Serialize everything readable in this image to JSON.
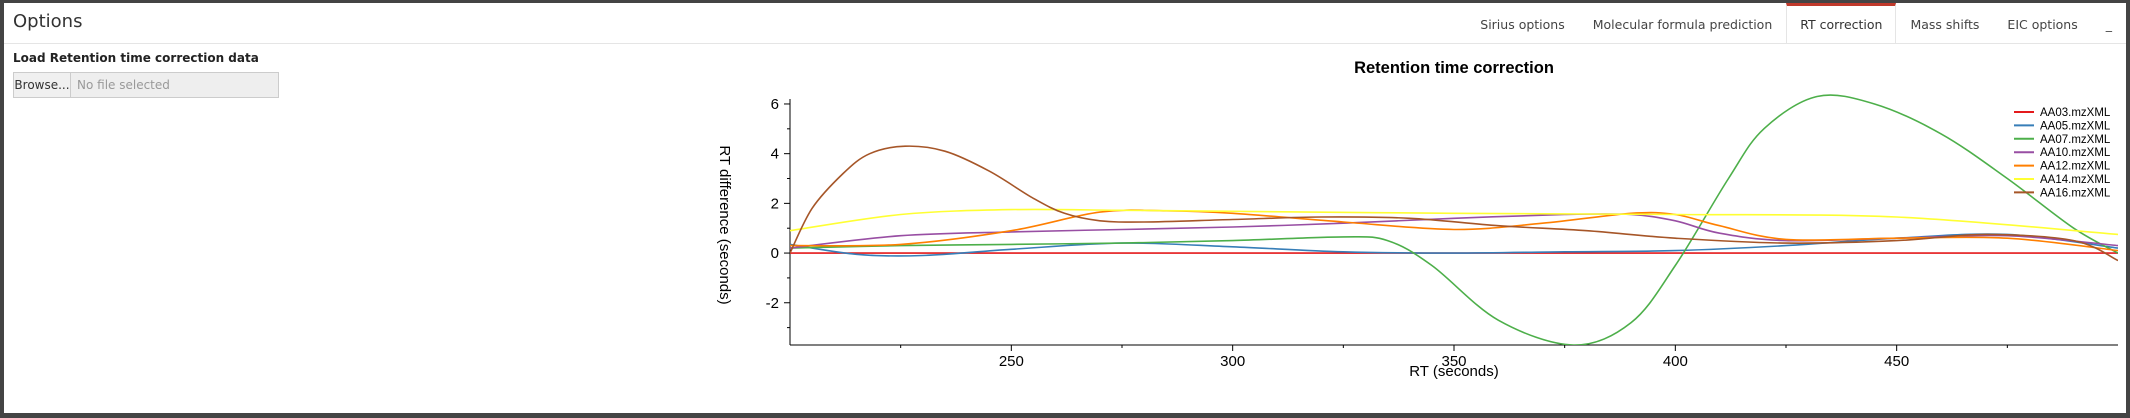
{
  "header": {
    "title": "Options",
    "tabs": [
      {
        "label": "Sirius options",
        "active": false
      },
      {
        "label": "Molecular formula prediction",
        "active": false
      },
      {
        "label": "RT correction",
        "active": true
      },
      {
        "label": "Mass shifts",
        "active": false
      },
      {
        "label": "EIC options",
        "active": false
      },
      {
        "label": "_",
        "active": false
      }
    ]
  },
  "side": {
    "heading": "Load Retention time correction data",
    "browse_label": "Browse...",
    "file_placeholder": "No file selected"
  },
  "chart_data": {
    "type": "line",
    "title": "Retention time correction",
    "xlabel": "RT (seconds)",
    "ylabel": "RT difference (seconds)",
    "xlim": [
      200,
      500
    ],
    "ylim": [
      -3.7,
      6.2
    ],
    "xticks": [
      250,
      300,
      350,
      400,
      450
    ],
    "yticks": [
      -2,
      0,
      2,
      4,
      6
    ],
    "grid": false,
    "legend_position": "top-right",
    "series": [
      {
        "name": "AA03.mzXML",
        "color": "#e41a1c",
        "x": [
          200,
          250,
          300,
          350,
          400,
          450,
          500
        ],
        "y": [
          0.0,
          0.0,
          0.0,
          0.0,
          0.0,
          0.0,
          0.0
        ]
      },
      {
        "name": "AA05.mzXML",
        "color": "#377eb8",
        "x": [
          200,
          215,
          230,
          250,
          275,
          300,
          325,
          350,
          375,
          400,
          425,
          450,
          475,
          500
        ],
        "y": [
          0.35,
          -0.05,
          -0.1,
          0.15,
          0.4,
          0.25,
          0.05,
          0.0,
          0.05,
          0.1,
          0.3,
          0.6,
          0.75,
          0.2
        ]
      },
      {
        "name": "AA07.mzXML",
        "color": "#4daf4a",
        "x": [
          200,
          225,
          250,
          275,
          300,
          325,
          335,
          345,
          360,
          377,
          390,
          400,
          412,
          420,
          432,
          445,
          460,
          475,
          490,
          500
        ],
        "y": [
          0.2,
          0.3,
          0.35,
          0.4,
          0.5,
          0.65,
          0.5,
          -0.5,
          -2.7,
          -3.7,
          -2.8,
          -0.5,
          3.0,
          5.0,
          6.3,
          6.0,
          4.8,
          3.0,
          1.0,
          0.0
        ]
      },
      {
        "name": "AA10.mzXML",
        "color": "#984ea3",
        "x": [
          200,
          225,
          250,
          275,
          300,
          325,
          350,
          375,
          390,
          400,
          410,
          425,
          450,
          475,
          500
        ],
        "y": [
          0.2,
          0.7,
          0.85,
          0.95,
          1.05,
          1.2,
          1.4,
          1.55,
          1.55,
          1.3,
          0.8,
          0.5,
          0.6,
          0.7,
          0.3
        ]
      },
      {
        "name": "AA12.mzXML",
        "color": "#ff7f00",
        "x": [
          200,
          225,
          250,
          270,
          285,
          300,
          325,
          350,
          370,
          390,
          400,
          410,
          425,
          450,
          475,
          500
        ],
        "y": [
          0.3,
          0.35,
          0.9,
          1.65,
          1.7,
          1.6,
          1.25,
          0.95,
          1.2,
          1.6,
          1.55,
          1.1,
          0.55,
          0.6,
          0.6,
          0.1
        ]
      },
      {
        "name": "AA14.mzXML",
        "color": "#ffff33",
        "x": [
          200,
          225,
          250,
          275,
          300,
          350,
          400,
          450,
          500
        ],
        "y": [
          0.9,
          1.55,
          1.75,
          1.72,
          1.68,
          1.6,
          1.55,
          1.45,
          0.75
        ]
      },
      {
        "name": "AA16.mzXML",
        "color": "#a65628",
        "x": [
          200,
          205,
          212,
          218,
          226,
          235,
          245,
          255,
          262,
          270,
          280,
          300,
          320,
          340,
          360,
          380,
          400,
          425,
          450,
          470,
          490,
          500
        ],
        "y": [
          0.0,
          1.8,
          3.2,
          4.0,
          4.3,
          4.1,
          3.3,
          2.2,
          1.6,
          1.3,
          1.25,
          1.35,
          1.45,
          1.4,
          1.1,
          0.9,
          0.6,
          0.4,
          0.5,
          0.75,
          0.5,
          -0.3
        ]
      }
    ]
  }
}
